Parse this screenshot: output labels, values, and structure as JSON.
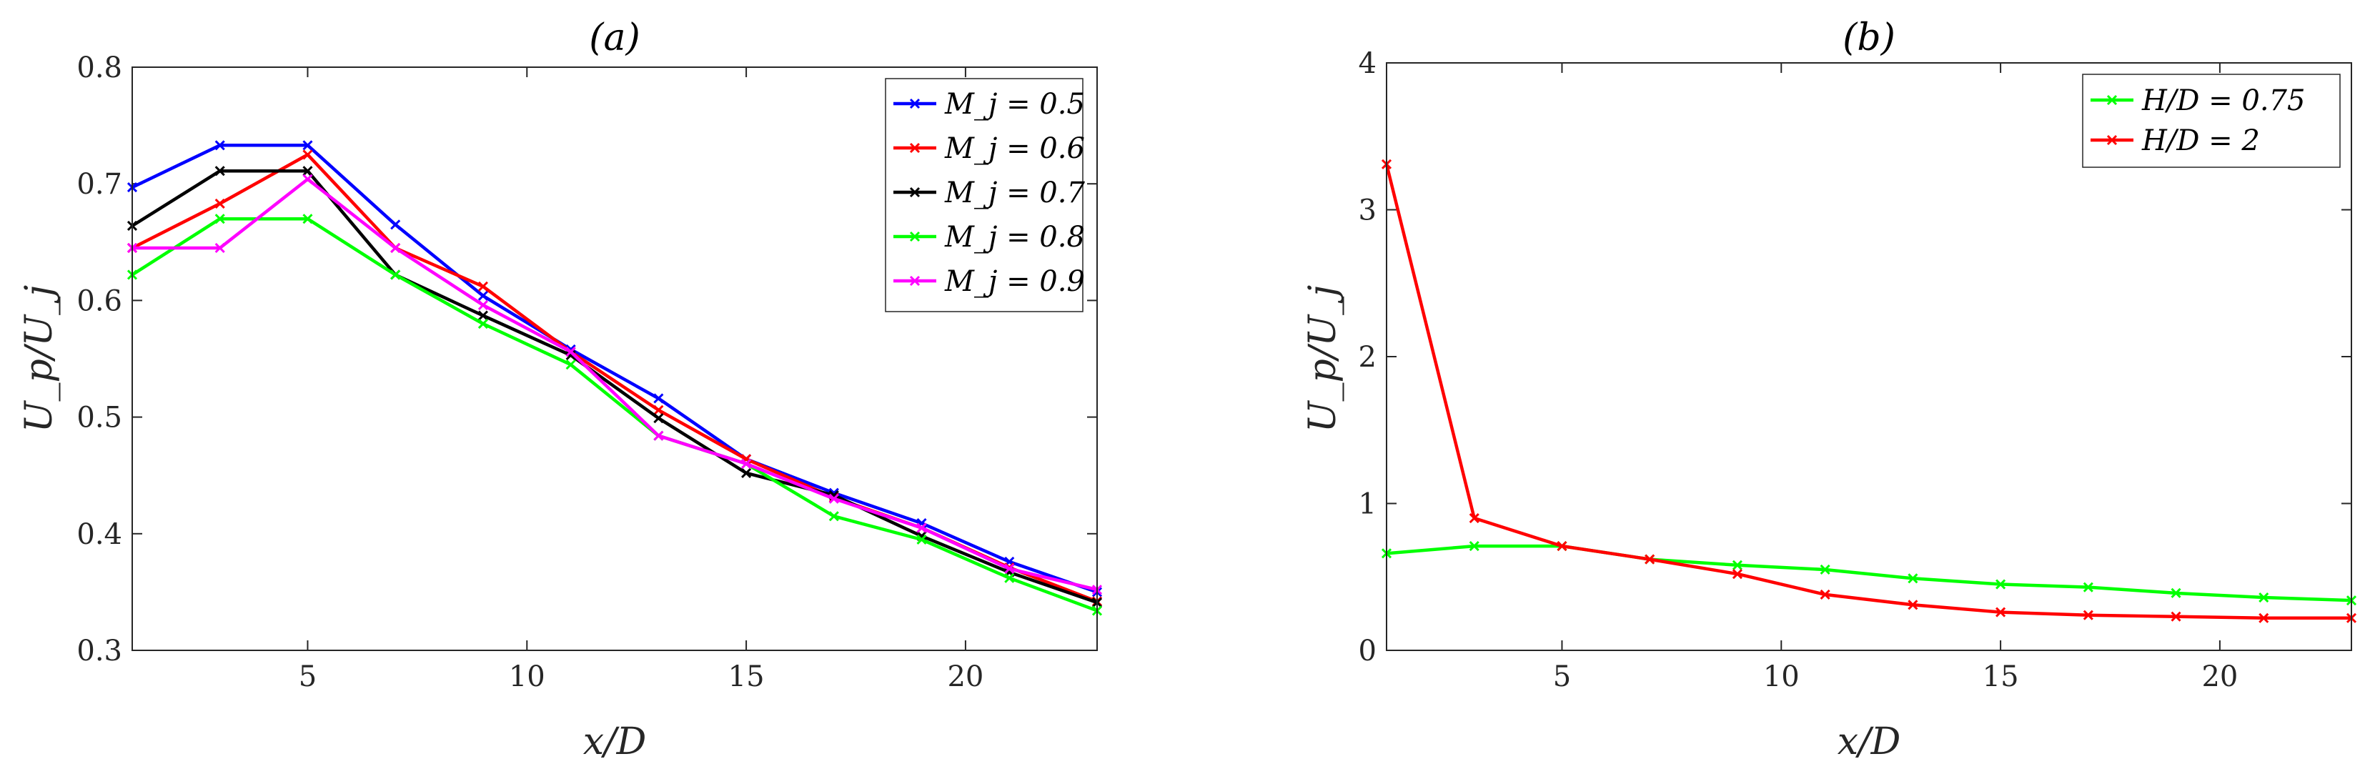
{
  "chart_data": [
    {
      "type": "line",
      "title": "(a)",
      "xlabel": "x/D",
      "ylabel": "U_p/U_j",
      "xlim": [
        1,
        23
      ],
      "ylim": [
        0.3,
        0.8
      ],
      "xticks": [
        5,
        10,
        15,
        20
      ],
      "yticks": [
        0.3,
        0.4,
        0.5,
        0.6,
        0.7,
        0.8
      ],
      "x": [
        1,
        3,
        5,
        7,
        9,
        11,
        13,
        15,
        17,
        19,
        21,
        23
      ],
      "legend_position": "top-right",
      "series": [
        {
          "name": "M_j = 0.5",
          "color": "#0000ff",
          "values": [
            0.697,
            0.733,
            0.733,
            0.665,
            0.604,
            0.558,
            0.516,
            0.464,
            0.435,
            0.409,
            0.376,
            0.35
          ]
        },
        {
          "name": "M_j = 0.6",
          "color": "#ff0000",
          "values": [
            0.645,
            0.683,
            0.725,
            0.645,
            0.612,
            0.556,
            0.506,
            0.464,
            0.431,
            0.405,
            0.371,
            0.342
          ]
        },
        {
          "name": "M_j = 0.7",
          "color": "#000000",
          "values": [
            0.664,
            0.711,
            0.711,
            0.622,
            0.587,
            0.553,
            0.499,
            0.452,
            0.433,
            0.398,
            0.367,
            0.341
          ]
        },
        {
          "name": "M_j = 0.8",
          "color": "#00ff00",
          "values": [
            0.622,
            0.67,
            0.67,
            0.622,
            0.58,
            0.545,
            0.484,
            0.46,
            0.415,
            0.395,
            0.362,
            0.334
          ]
        },
        {
          "name": "M_j = 0.9",
          "color": "#ff00ff",
          "values": [
            0.645,
            0.645,
            0.704,
            0.645,
            0.596,
            0.556,
            0.484,
            0.46,
            0.43,
            0.405,
            0.37,
            0.352
          ]
        }
      ]
    },
    {
      "type": "line",
      "title": "(b)",
      "xlabel": "x/D",
      "ylabel": "U_p/U_j",
      "xlim": [
        1,
        23
      ],
      "ylim": [
        0,
        4
      ],
      "xticks": [
        5,
        10,
        15,
        20
      ],
      "yticks": [
        0,
        1,
        2,
        3,
        4
      ],
      "x": [
        1,
        3,
        5,
        7,
        9,
        11,
        13,
        15,
        17,
        19,
        21,
        23
      ],
      "legend_position": "top-right",
      "series": [
        {
          "name": "H/D = 0.75",
          "color": "#00ff00",
          "values": [
            0.66,
            0.71,
            0.71,
            0.62,
            0.58,
            0.55,
            0.49,
            0.45,
            0.43,
            0.39,
            0.36,
            0.34
          ]
        },
        {
          "name": "H/D = 2",
          "color": "#ff0000",
          "values": [
            3.31,
            0.9,
            0.71,
            0.62,
            0.52,
            0.38,
            0.31,
            0.26,
            0.24,
            0.23,
            0.22,
            0.22
          ]
        }
      ]
    }
  ]
}
